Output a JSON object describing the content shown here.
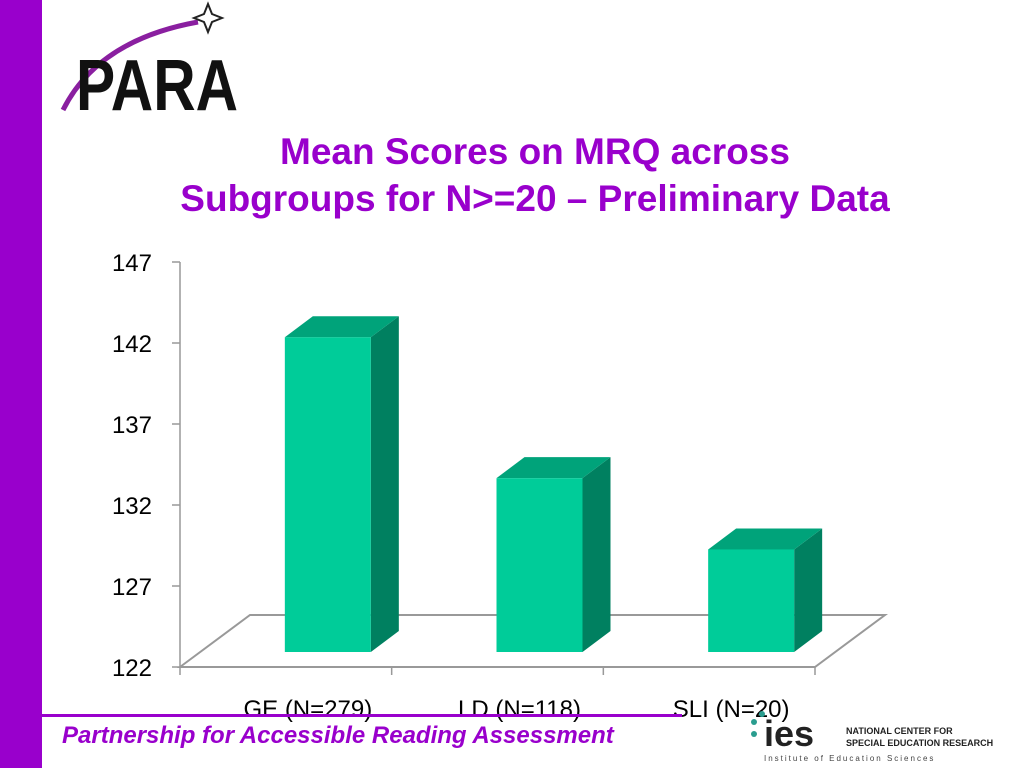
{
  "logo": {
    "text": "PARA"
  },
  "title": {
    "line1": "Mean Scores on MRQ across",
    "line2": "Subgroups for N>=20 – Preliminary Data"
  },
  "chart_data": {
    "type": "bar",
    "categories": [
      "GE (N=279)",
      "LD (N=118)",
      "SLI (N=20)"
    ],
    "values": [
      143.9,
      135.2,
      130.8
    ],
    "yticks": [
      122,
      127,
      132,
      137,
      142,
      147
    ],
    "ylim": [
      122,
      147
    ],
    "grid": false,
    "colors": {
      "front": "#00cc99",
      "side": "#008060",
      "top": "#00a37a",
      "floor_line": "#999999"
    }
  },
  "footer": {
    "text": "Partnership for Accessible Reading Assessment",
    "ies_word": "ies",
    "ies_line1": "NATIONAL CENTER FOR",
    "ies_line2": "SPECIAL EDUCATION RESEARCH",
    "ies_line3": "Institute of Education Sciences"
  },
  "colors": {
    "brand": "#9900cc"
  }
}
